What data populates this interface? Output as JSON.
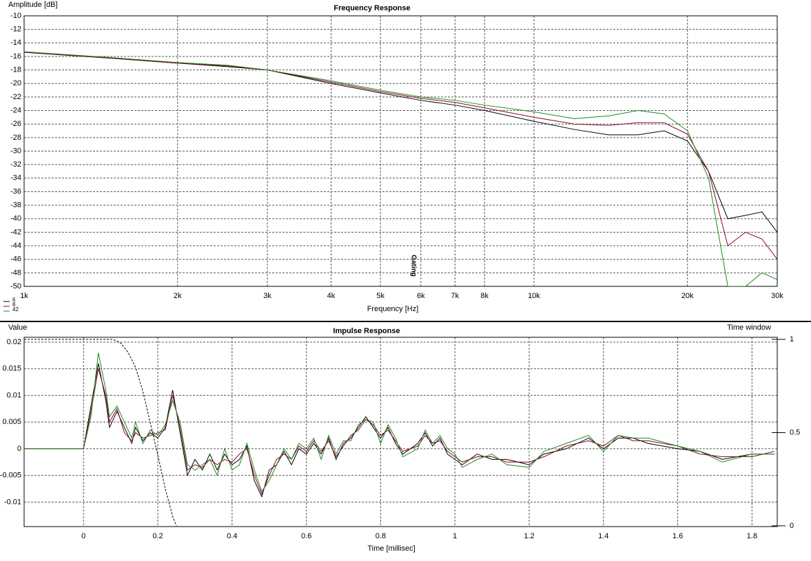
{
  "chart_data": [
    {
      "type": "line",
      "title": "Frequency Response",
      "y_label": "Amplitude [dB]",
      "x_label": "Frequency [Hz]",
      "xscale": "log",
      "grid": true,
      "xlim": [
        1000,
        30000
      ],
      "xticks": [
        {
          "value": 1000,
          "label": "1k"
        },
        {
          "value": 2000,
          "label": "2k"
        },
        {
          "value": 3000,
          "label": "3k"
        },
        {
          "value": 4000,
          "label": "4k"
        },
        {
          "value": 5000,
          "label": "5k"
        },
        {
          "value": 6000,
          "label": "6k"
        },
        {
          "value": 7000,
          "label": "7k"
        },
        {
          "value": 8000,
          "label": "8k"
        },
        {
          "value": 10000,
          "label": "10k"
        },
        {
          "value": 20000,
          "label": "20k"
        },
        {
          "value": 30000,
          "label": "30k"
        }
      ],
      "ylim": [
        -50,
        -10
      ],
      "yticks": [
        -50,
        -48,
        -46,
        -44,
        -42,
        -40,
        -38,
        -36,
        -34,
        -32,
        -30,
        -28,
        -26,
        -24,
        -22,
        -20,
        -18,
        -16,
        -14,
        -12,
        -10
      ],
      "annotation": {
        "text": "Gating",
        "x": 5800
      },
      "legend": "bottom-left",
      "x": [
        1000,
        1500,
        2000,
        2500,
        3000,
        4000,
        5000,
        6000,
        7000,
        8000,
        10000,
        12000,
        14000,
        16000,
        18000,
        20000,
        22000,
        24000,
        26000,
        28000,
        30000
      ],
      "series": [
        {
          "name": "6",
          "color": "#000000",
          "values": [
            -15.4,
            -16.3,
            -17.0,
            -17.5,
            -18.0,
            -20.0,
            -21.4,
            -22.5,
            -23.2,
            -24.0,
            -25.6,
            -26.8,
            -27.6,
            -27.6,
            -27.0,
            -28.5,
            -33,
            -40,
            -39.5,
            -39,
            -42
          ]
        },
        {
          "name": "8",
          "color": "#8b0030",
          "values": [
            -15.4,
            -16.3,
            -17.0,
            -17.4,
            -18.0,
            -19.8,
            -21.2,
            -22.2,
            -22.8,
            -23.6,
            -25.0,
            -26.0,
            -26.2,
            -25.8,
            -25.8,
            -27.5,
            -33,
            -44,
            -42,
            -43,
            -46
          ]
        },
        {
          "name": "42",
          "color": "#1a8a1a",
          "values": [
            -15.3,
            -16.2,
            -16.9,
            -17.3,
            -18.0,
            -19.6,
            -21.0,
            -22.0,
            -22.5,
            -23.2,
            -24.2,
            -25.2,
            -24.8,
            -24.0,
            -24.5,
            -27.0,
            -34,
            -50,
            -50,
            -48,
            -49
          ]
        }
      ]
    },
    {
      "type": "line",
      "title": "Impulse Response",
      "y_label": "Value",
      "x_label": "Time [millisec]",
      "y2_label": "Time window",
      "grid": true,
      "xlim": [
        -0.16,
        1.868
      ],
      "xticks": [
        0,
        0.2,
        0.4,
        0.6,
        0.8,
        1,
        1.2,
        1.4,
        1.6,
        1.8
      ],
      "ylim": [
        -0.0146,
        0.0209
      ],
      "yticks": [
        -0.01,
        -0.005,
        0,
        0.005,
        0.01,
        0.015,
        0.02
      ],
      "y2lim": [
        -0.004,
        1.011
      ],
      "y2ticks": [
        0,
        0.5,
        1
      ],
      "window": {
        "axis": "y2",
        "color": "#000000",
        "x": [
          -0.16,
          0,
          0.08,
          0.1,
          0.12,
          0.14,
          0.16,
          0.18,
          0.2,
          0.22,
          0.24,
          0.25
        ],
        "values": [
          1,
          1,
          1,
          0.98,
          0.93,
          0.85,
          0.72,
          0.55,
          0.38,
          0.2,
          0.05,
          0
        ]
      },
      "x": [
        -0.16,
        0,
        0.02,
        0.04,
        0.06,
        0.07,
        0.09,
        0.11,
        0.13,
        0.14,
        0.16,
        0.18,
        0.2,
        0.22,
        0.24,
        0.26,
        0.28,
        0.3,
        0.32,
        0.34,
        0.36,
        0.38,
        0.4,
        0.42,
        0.44,
        0.46,
        0.48,
        0.5,
        0.52,
        0.54,
        0.56,
        0.58,
        0.6,
        0.62,
        0.64,
        0.66,
        0.68,
        0.7,
        0.72,
        0.74,
        0.76,
        0.78,
        0.8,
        0.82,
        0.84,
        0.86,
        0.9,
        0.92,
        0.94,
        0.96,
        0.98,
        1.0,
        1.02,
        1.06,
        1.1,
        1.14,
        1.2,
        1.24,
        1.3,
        1.36,
        1.4,
        1.44,
        1.48,
        1.52,
        1.6,
        1.66,
        1.72,
        1.8,
        1.86
      ],
      "series": [
        {
          "color": "#000000",
          "values": [
            0,
            0,
            0.008,
            0.016,
            0.009,
            0.004,
            0.007,
            0.004,
            0.001,
            0.004,
            0.0015,
            0.003,
            0.002,
            0.004,
            0.011,
            0.003,
            -0.005,
            -0.002,
            -0.004,
            -0.001,
            -0.004,
            -0.001,
            -0.003,
            -0.002,
            0.0005,
            -0.006,
            -0.009,
            -0.004,
            -0.003,
            -0.0005,
            -0.003,
            0,
            -0.001,
            0.001,
            -0.001,
            0.002,
            -0.002,
            0.001,
            0.002,
            0.004,
            0.006,
            0.004,
            0.002,
            0.004,
            0.001,
            -0.001,
            0.001,
            0.003,
            0.0005,
            0.002,
            -0.001,
            -0.002,
            -0.003,
            -0.001,
            -0.002,
            -0.002,
            -0.003,
            -0.001,
            0,
            0.002,
            0,
            0.002,
            0.002,
            0.001,
            0,
            -0.0005,
            -0.002,
            -0.001,
            -0.001
          ]
        },
        {
          "color": "#8b0030",
          "values": [
            0,
            0,
            0.007,
            0.015,
            0.01,
            0.005,
            0.0075,
            0.003,
            0.0015,
            0.003,
            0.002,
            0.0025,
            0.003,
            0.0035,
            0.01,
            0.004,
            -0.004,
            -0.003,
            -0.0035,
            -0.002,
            -0.003,
            -0.002,
            -0.0025,
            -0.001,
            0,
            -0.005,
            -0.0085,
            -0.005,
            -0.002,
            -0.001,
            -0.002,
            0.0005,
            -0.0005,
            0.0015,
            -0.0005,
            0.0015,
            -0.0015,
            0.0005,
            0.0025,
            0.0035,
            0.0055,
            0.0045,
            0.0025,
            0.0035,
            0.0015,
            -0.0005,
            0.0005,
            0.0025,
            0.001,
            0.0015,
            -0.0005,
            -0.0015,
            -0.0025,
            -0.0015,
            -0.0015,
            -0.0025,
            -0.0025,
            -0.0015,
            0.0005,
            0.0015,
            0.0005,
            0.0025,
            0.0015,
            0.0015,
            0.0005,
            -0.001,
            -0.0015,
            -0.0015,
            -0.0005
          ]
        },
        {
          "color": "#1a8a1a",
          "values": [
            0,
            0,
            0.006,
            0.018,
            0.011,
            0.006,
            0.008,
            0.005,
            0.002,
            0.005,
            0.001,
            0.0035,
            0.0025,
            0.0045,
            0.009,
            0.005,
            -0.003,
            -0.004,
            -0.003,
            -0.002,
            -0.005,
            0,
            -0.004,
            -0.003,
            0.001,
            -0.004,
            -0.008,
            -0.006,
            -0.003,
            0,
            -0.002,
            0.001,
            0,
            0.002,
            -0.002,
            0.0025,
            -0.001,
            0.0015,
            0.0015,
            0.0045,
            0.0055,
            0.005,
            0.001,
            0.0045,
            0.002,
            -0.0015,
            0,
            0.0035,
            0.001,
            0.0025,
            0,
            -0.001,
            -0.0035,
            -0.002,
            -0.001,
            -0.003,
            -0.0035,
            -0.0005,
            0.001,
            0.0025,
            -0.0005,
            0.0025,
            0.002,
            0.002,
            0.0005,
            -0.0005,
            -0.0025,
            -0.001,
            -0.001
          ]
        }
      ]
    }
  ]
}
